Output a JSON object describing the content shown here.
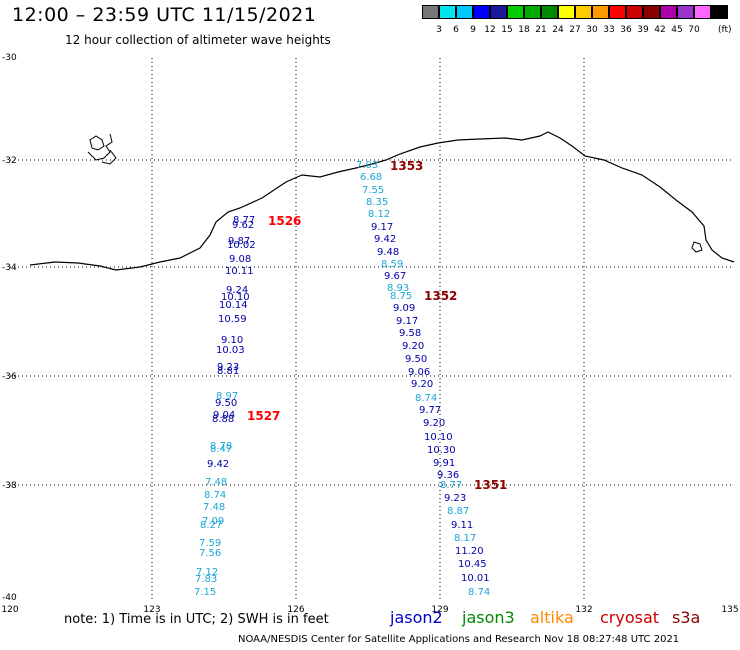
{
  "header": {
    "title": "12:00 – 23:59 UTC 11/15/2021",
    "subtitle": "12 hour collection of altimeter wave heights"
  },
  "legend": {
    "colors": [
      "#777777",
      "#00e5ee",
      "#00c8ff",
      "#0000ff",
      "#1a1a9a",
      "#00cc00",
      "#00aa00",
      "#008800",
      "#ffff00",
      "#ffcc00",
      "#ff9900",
      "#ff0000",
      "#cc0000",
      "#880000",
      "#aa00aa",
      "#9933cc",
      "#ff66ff",
      "#000000"
    ],
    "ticks": [
      "3",
      "6",
      "9",
      "12",
      "15",
      "18",
      "21",
      "24",
      "27",
      "30",
      "33",
      "36",
      "39",
      "42",
      "45",
      "70"
    ],
    "unit": "(ft)"
  },
  "axes": {
    "lat_labels": [
      "-30",
      "-32",
      "-34",
      "-36",
      "-38",
      "-40"
    ],
    "lon_labels": [
      "120",
      "123",
      "126",
      "129",
      "132",
      "135"
    ]
  },
  "passes": [
    {
      "time": "1353",
      "color": "#8b0000"
    },
    {
      "time": "1526",
      "color": "#ff0000"
    },
    {
      "time": "1352",
      "color": "#8b0000"
    },
    {
      "time": "1527",
      "color": "#ff0000"
    },
    {
      "time": "1351",
      "color": "#8b0000"
    }
  ],
  "waves_west": [
    {
      "v": "8.77",
      "c": "#0000aa"
    },
    {
      "v": "9.62",
      "c": "#0000aa"
    },
    {
      "v": "9.87",
      "c": "#0000aa"
    },
    {
      "v": "10.02",
      "c": "#0000aa"
    },
    {
      "v": "9.08",
      "c": "#0000aa"
    },
    {
      "v": "10.11",
      "c": "#0000aa"
    },
    {
      "v": "9.24",
      "c": "#0000aa"
    },
    {
      "v": "10.10",
      "c": "#0000aa"
    },
    {
      "v": "10.14",
      "c": "#0000aa"
    },
    {
      "v": "10.59",
      "c": "#0000aa"
    },
    {
      "v": "9.10",
      "c": "#0000aa"
    },
    {
      "v": "10.03",
      "c": "#0000aa"
    },
    {
      "v": "9.23",
      "c": "#0000aa"
    },
    {
      "v": "8.81",
      "c": "#0000aa"
    },
    {
      "v": "8.97",
      "c": "#1ca6d8"
    },
    {
      "v": "9.50",
      "c": "#0000aa"
    },
    {
      "v": "9.04",
      "c": "#0000aa"
    },
    {
      "v": "8.88",
      "c": "#0000aa"
    },
    {
      "v": "8.78",
      "c": "#1ca6d8"
    },
    {
      "v": "8.47",
      "c": "#1ca6d8"
    },
    {
      "v": "9.42",
      "c": "#0000aa"
    },
    {
      "v": "7.48",
      "c": "#1ca6d8"
    },
    {
      "v": "8.74",
      "c": "#1ca6d8"
    },
    {
      "v": "7.48",
      "c": "#1ca6d8"
    },
    {
      "v": "7.09",
      "c": "#1ca6d8"
    },
    {
      "v": "8.27",
      "c": "#1ca6d8"
    },
    {
      "v": "7.59",
      "c": "#1ca6d8"
    },
    {
      "v": "7.56",
      "c": "#1ca6d8"
    },
    {
      "v": "7.12",
      "c": "#1ca6d8"
    },
    {
      "v": "7.83",
      "c": "#1ca6d8"
    },
    {
      "v": "7.15",
      "c": "#1ca6d8"
    }
  ],
  "waves_east": [
    {
      "v": "7.03",
      "c": "#1ca6d8"
    },
    {
      "v": "6.68",
      "c": "#1ca6d8"
    },
    {
      "v": "7.55",
      "c": "#1ca6d8"
    },
    {
      "v": "8.35",
      "c": "#1ca6d8"
    },
    {
      "v": "8.12",
      "c": "#1ca6d8"
    },
    {
      "v": "9.17",
      "c": "#0000aa"
    },
    {
      "v": "9.42",
      "c": "#0000aa"
    },
    {
      "v": "9.48",
      "c": "#0000aa"
    },
    {
      "v": "8.59",
      "c": "#1ca6d8"
    },
    {
      "v": "9.67",
      "c": "#0000aa"
    },
    {
      "v": "8.93",
      "c": "#1ca6d8"
    },
    {
      "v": "8.75",
      "c": "#1ca6d8"
    },
    {
      "v": "9.09",
      "c": "#0000aa"
    },
    {
      "v": "9.17",
      "c": "#0000aa"
    },
    {
      "v": "9.58",
      "c": "#0000aa"
    },
    {
      "v": "9.20",
      "c": "#0000aa"
    },
    {
      "v": "9.50",
      "c": "#0000aa"
    },
    {
      "v": "9.06",
      "c": "#0000aa"
    },
    {
      "v": "9.20",
      "c": "#0000aa"
    },
    {
      "v": "8.74",
      "c": "#1ca6d8"
    },
    {
      "v": "9.77",
      "c": "#0000aa"
    },
    {
      "v": "9.20",
      "c": "#0000aa"
    },
    {
      "v": "10.10",
      "c": "#0000aa"
    },
    {
      "v": "10.30",
      "c": "#0000aa"
    },
    {
      "v": "9.91",
      "c": "#0000aa"
    },
    {
      "v": "9.36",
      "c": "#0000aa"
    },
    {
      "v": "8.77",
      "c": "#1ca6d8"
    },
    {
      "v": "9.23",
      "c": "#0000aa"
    },
    {
      "v": "8.87",
      "c": "#1ca6d8"
    },
    {
      "v": "9.11",
      "c": "#0000aa"
    },
    {
      "v": "8.17",
      "c": "#1ca6d8"
    },
    {
      "v": "11.20",
      "c": "#0000aa"
    },
    {
      "v": "10.45",
      "c": "#0000aa"
    },
    {
      "v": "10.01",
      "c": "#0000aa"
    },
    {
      "v": "8.74",
      "c": "#1ca6d8"
    }
  ],
  "footer": {
    "note": "note: 1) Time is in UTC; 2) SWH is in feet",
    "satellites": [
      {
        "name": "jason2",
        "color": "#0000cc"
      },
      {
        "name": "jason3",
        "color": "#008800"
      },
      {
        "name": "altika",
        "color": "#ff8800"
      },
      {
        "name": "cryosat",
        "color": "#cc0000"
      },
      {
        "name": "s3a",
        "color": "#880000"
      }
    ],
    "credit": "NOAA/NESDIS Center for Satellite Applications and Research    Nov 18 08:27:48 UTC 2021"
  }
}
